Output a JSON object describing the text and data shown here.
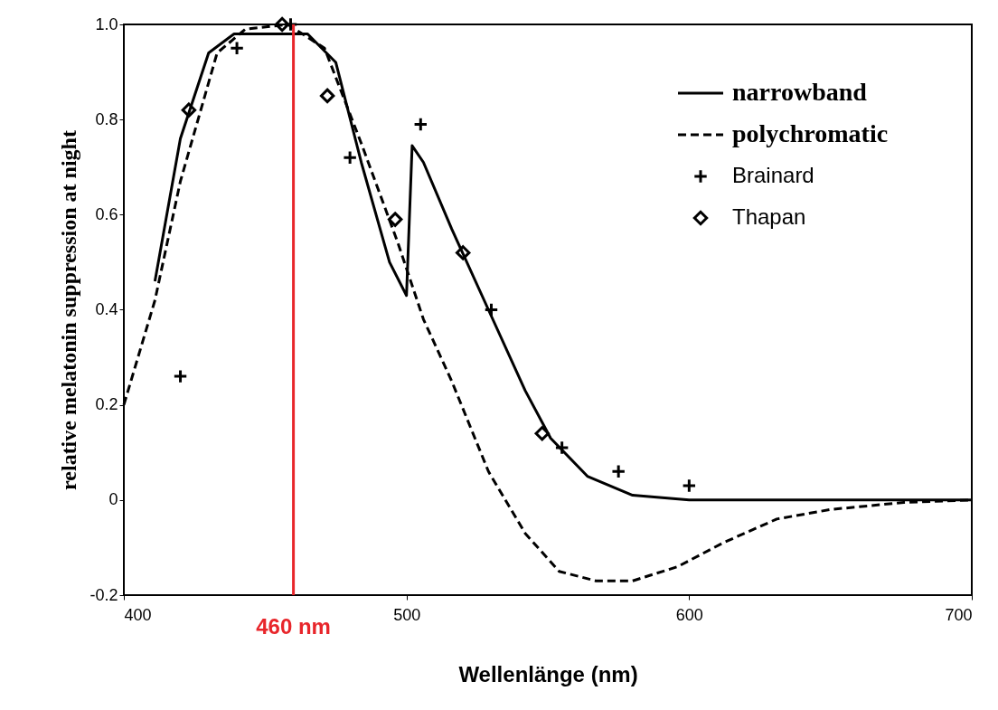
{
  "chart_data": {
    "type": "line",
    "xlabel": "Wellenlänge (nm)",
    "ylabel": "relative melatonin suppression at night",
    "xlim": [
      400,
      700
    ],
    "xticks": [
      400,
      500,
      600,
      700
    ],
    "ylim": [
      -0.2,
      1.0
    ],
    "yticks": [
      {
        "value": -0.2,
        "label": "-0.2"
      },
      0,
      0.2,
      0.4,
      0.6,
      0.8,
      {
        "value": 1.0,
        "label": "1.0"
      }
    ],
    "grid": false,
    "legend": "top right",
    "series": [
      {
        "name": "narrowband",
        "line_style": "solid",
        "color": "#000000",
        "x": [
          411,
          420,
          430,
          439,
          452,
          465,
          475,
          484,
          494,
          500,
          502,
          506,
          516,
          529,
          542,
          551,
          564,
          580,
          600,
          650,
          700
        ],
        "values": [
          0.46,
          0.76,
          0.94,
          0.98,
          0.98,
          0.98,
          0.92,
          0.71,
          0.5,
          0.43,
          0.745,
          0.71,
          0.57,
          0.4,
          0.23,
          0.13,
          0.05,
          0.01,
          0,
          0,
          0
        ]
      },
      {
        "name": "polychromatic",
        "line_style": "dashed",
        "color": "#000000",
        "x": [
          400,
          411,
          420,
          433,
          443,
          458,
          471,
          484,
          497,
          506,
          516,
          529,
          542,
          554,
          567,
          580,
          596,
          612,
          631,
          650,
          676,
          700
        ],
        "values": [
          0.2,
          0.42,
          0.67,
          0.94,
          0.99,
          1.0,
          0.95,
          0.75,
          0.54,
          0.38,
          0.25,
          0.06,
          -0.07,
          -0.15,
          -0.17,
          -0.17,
          -0.14,
          -0.09,
          -0.04,
          -0.02,
          -0.005,
          0
        ]
      },
      {
        "name": "Brainard",
        "type": "scatter",
        "marker": "cross",
        "color": "#000000",
        "x": [
          420,
          440,
          459,
          480,
          505,
          530,
          555,
          575,
          600
        ],
        "values": [
          0.26,
          0.95,
          1.0,
          0.72,
          0.79,
          0.4,
          0.11,
          0.06,
          0.03
        ]
      },
      {
        "name": "Thapan",
        "type": "scatter",
        "marker": "diamond",
        "color": "#000000",
        "x": [
          423,
          456,
          472,
          496,
          520,
          548
        ],
        "values": [
          0.82,
          1.0,
          0.85,
          0.59,
          0.52,
          0.14
        ]
      }
    ],
    "ref_lines": [
      {
        "axis": "x",
        "value": 460,
        "label": "460 nm",
        "color": "#e8262b"
      }
    ]
  }
}
